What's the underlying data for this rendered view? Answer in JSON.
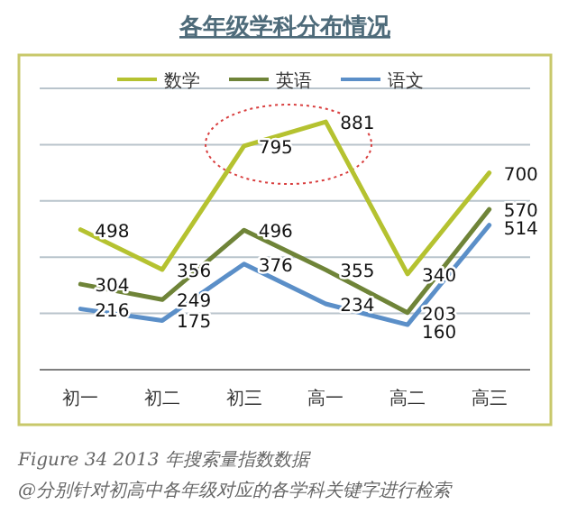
{
  "chart_data": {
    "type": "line",
    "title": "各年级学科分布情况",
    "categories": [
      "初一",
      "初二",
      "初三",
      "高一",
      "高二",
      "高三"
    ],
    "series": [
      {
        "name": "数学",
        "color": "#b5c230",
        "values": [
          498,
          356,
          795,
          881,
          340,
          700
        ]
      },
      {
        "name": "英语",
        "color": "#6f8438",
        "values": [
          304,
          249,
          496,
          355,
          203,
          570
        ]
      },
      {
        "name": "语文",
        "color": "#5b8fc8",
        "values": [
          216,
          175,
          376,
          234,
          160,
          514
        ]
      }
    ],
    "data_labels": true,
    "legend": "top",
    "grid": "y",
    "marker": "none",
    "annotations": [
      "Figure 34 2013 年搜索量指数数据",
      "@分别针对初高中各年级对应的各学科关键字进行检索"
    ]
  }
}
